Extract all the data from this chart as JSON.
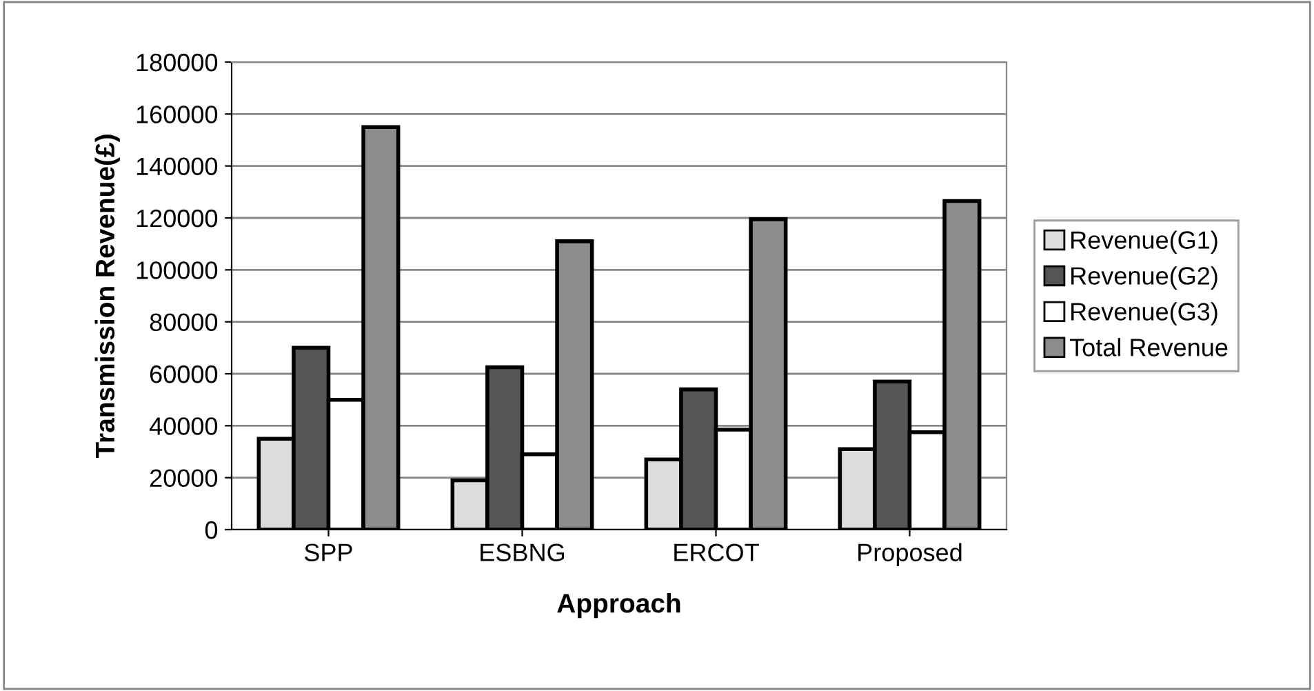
{
  "chart_data": {
    "type": "bar",
    "xlabel": "Approach",
    "ylabel": "Transmission Revenue(£)",
    "categories": [
      "SPP",
      "ESBNG",
      "ERCOT",
      "Proposed"
    ],
    "series": [
      {
        "name": "Revenue(G1)",
        "color": "#dcdcdc",
        "values": [
          35000,
          19000,
          27000,
          31000
        ]
      },
      {
        "name": "Revenue(G2)",
        "color": "#555555",
        "values": [
          70000,
          62500,
          54000,
          57000
        ]
      },
      {
        "name": "Revenue(G3)",
        "color": "#ffffff",
        "values": [
          50000,
          29000,
          38500,
          37500
        ]
      },
      {
        "name": "Total Revenue",
        "color": "#8c8c8c",
        "values": [
          155000,
          111000,
          119500,
          126500
        ]
      }
    ],
    "ylim": [
      0,
      180000
    ],
    "yticks": [
      0,
      20000,
      40000,
      60000,
      80000,
      100000,
      120000,
      140000,
      160000,
      180000
    ],
    "grid": "y",
    "legend": "right"
  }
}
